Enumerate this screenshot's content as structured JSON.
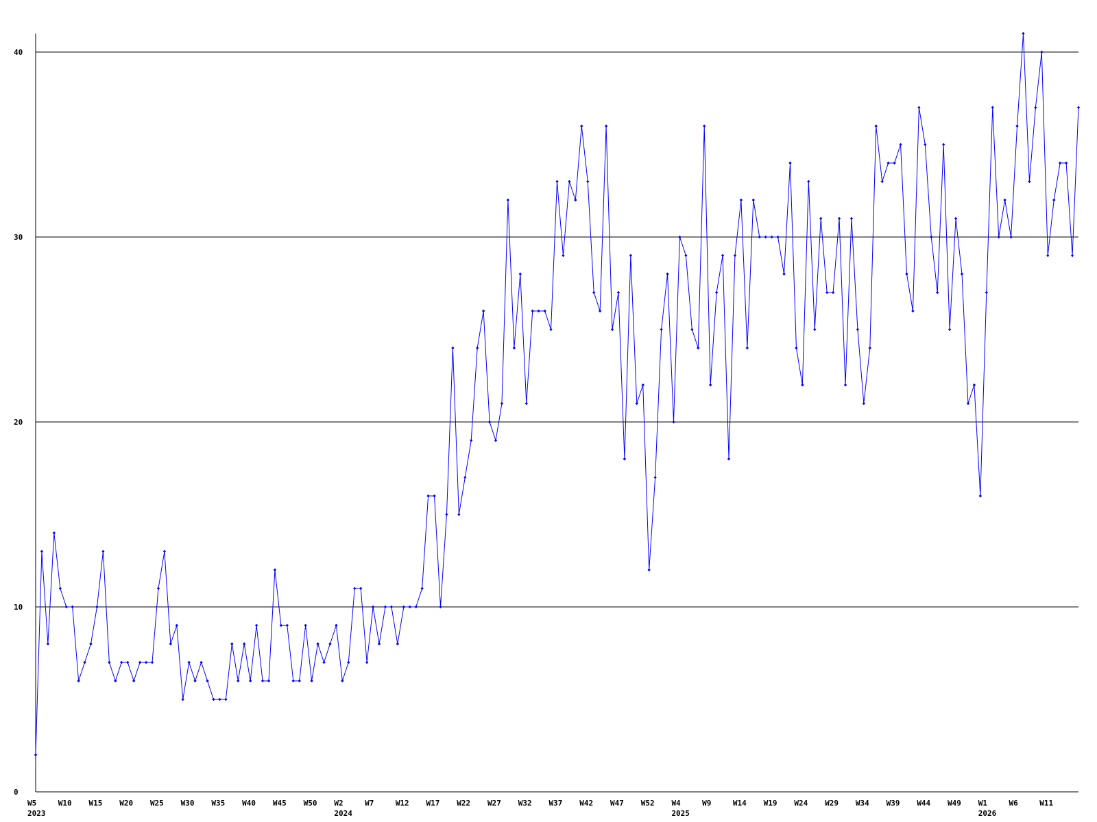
{
  "chart_data": {
    "type": "line",
    "categories": [
      "W5",
      null,
      null,
      null,
      null,
      "W10",
      null,
      null,
      null,
      null,
      "W15",
      null,
      null,
      null,
      null,
      "W20",
      null,
      null,
      null,
      null,
      "W25",
      null,
      null,
      null,
      null,
      "W30",
      null,
      null,
      null,
      null,
      "W35",
      null,
      null,
      null,
      null,
      "W40",
      null,
      null,
      null,
      null,
      "W45",
      null,
      null,
      null,
      null,
      "W50",
      null,
      null,
      null,
      null,
      "W2",
      null,
      null,
      null,
      null,
      "W7",
      null,
      null,
      null,
      null,
      "W12",
      null,
      null,
      null,
      null,
      "W17",
      null,
      null,
      null,
      null,
      "W22",
      null,
      null,
      null,
      null,
      "W27",
      null,
      null,
      null,
      null,
      "W32",
      null,
      null,
      null,
      null,
      "W37",
      null,
      null,
      null,
      null,
      "W42",
      null,
      null,
      null,
      null,
      "W47",
      null,
      null,
      null,
      null,
      "W52",
      null,
      null,
      null,
      null,
      "W4",
      null,
      null,
      null,
      null,
      "W9",
      null,
      null,
      null,
      null,
      "W14",
      null,
      null,
      null,
      null,
      "W19",
      null,
      null,
      null,
      null,
      "W24",
      null,
      null,
      null,
      null,
      "W29",
      null,
      null,
      null,
      null,
      "W34",
      null,
      null,
      null,
      null,
      "W39",
      null,
      null,
      null,
      null,
      "W44",
      null,
      null,
      null,
      null,
      "W49",
      null,
      null,
      null,
      null,
      "W1",
      null,
      null,
      null,
      null,
      "W6",
      null,
      null,
      null,
      null,
      "W11",
      null,
      null,
      null,
      null,
      null
    ],
    "years": [
      "2023",
      null,
      null,
      null,
      null,
      null,
      null,
      null,
      null,
      null,
      null,
      null,
      null,
      null,
      null,
      null,
      null,
      null,
      null,
      null,
      null,
      null,
      null,
      null,
      null,
      null,
      null,
      null,
      null,
      null,
      null,
      null,
      null,
      null,
      null,
      null,
      null,
      null,
      null,
      null,
      null,
      null,
      null,
      null,
      null,
      null,
      null,
      null,
      null,
      null,
      "2024",
      null,
      null,
      null,
      null,
      null,
      null,
      null,
      null,
      null,
      null,
      null,
      null,
      null,
      null,
      null,
      null,
      null,
      null,
      null,
      null,
      null,
      null,
      null,
      null,
      null,
      null,
      null,
      null,
      null,
      null,
      null,
      null,
      null,
      null,
      null,
      null,
      null,
      null,
      null,
      null,
      null,
      null,
      null,
      null,
      null,
      null,
      null,
      null,
      null,
      null,
      null,
      null,
      null,
      null,
      "2025",
      null,
      null,
      null,
      null,
      null,
      null,
      null,
      null,
      null,
      null,
      null,
      null,
      null,
      null,
      null,
      null,
      null,
      null,
      null,
      null,
      null,
      null,
      null,
      null,
      null,
      null,
      null,
      null,
      null,
      null,
      null,
      null,
      null,
      null,
      null,
      null,
      null,
      null,
      null,
      null,
      null,
      null,
      null,
      null,
      null,
      null,
      null,
      null,
      null,
      "2026",
      null,
      null,
      null,
      null,
      null,
      null,
      null,
      null,
      null,
      null,
      null,
      null,
      null,
      null,
      null
    ],
    "series": [
      {
        "color": "#0000ff",
        "values": [
          2,
          13,
          8,
          14,
          11,
          10,
          10,
          6,
          7,
          8,
          10,
          13,
          7,
          6,
          7,
          7,
          6,
          7,
          7,
          7,
          11,
          13,
          8,
          9,
          5,
          7,
          6,
          7,
          6,
          5,
          5,
          5,
          8,
          6,
          8,
          6,
          9,
          6,
          6,
          12,
          9,
          9,
          6,
          6,
          9,
          6,
          8,
          7,
          8,
          9,
          6,
          7,
          11,
          11,
          7,
          10,
          8,
          10,
          10,
          8,
          10,
          10,
          10,
          11,
          16,
          16,
          10,
          15,
          24,
          15,
          17,
          19,
          24,
          26,
          20,
          19,
          21,
          32,
          24,
          28,
          21,
          26,
          26,
          26,
          25,
          33,
          29,
          33,
          32,
          36,
          33,
          27,
          26,
          36,
          25,
          27,
          18,
          29,
          21,
          22,
          12,
          17,
          25,
          28,
          20,
          30,
          29,
          25,
          24,
          36,
          22,
          27,
          29,
          18,
          29,
          32,
          24,
          32,
          30,
          30,
          30,
          30,
          28,
          34,
          24,
          22,
          33,
          25,
          31,
          27,
          27,
          31,
          22,
          31,
          25,
          21,
          24,
          36,
          33,
          34,
          34,
          35,
          28,
          26,
          37,
          35,
          30,
          27,
          35,
          25,
          31,
          28,
          21,
          22,
          16,
          27,
          37,
          30,
          32,
          30,
          36,
          41,
          33,
          37,
          40,
          29,
          32,
          34,
          34,
          29,
          37
        ]
      }
    ],
    "ylim": [
      0,
      41
    ],
    "yticks": [
      0,
      10,
      20,
      30,
      40
    ],
    "grid": true
  }
}
